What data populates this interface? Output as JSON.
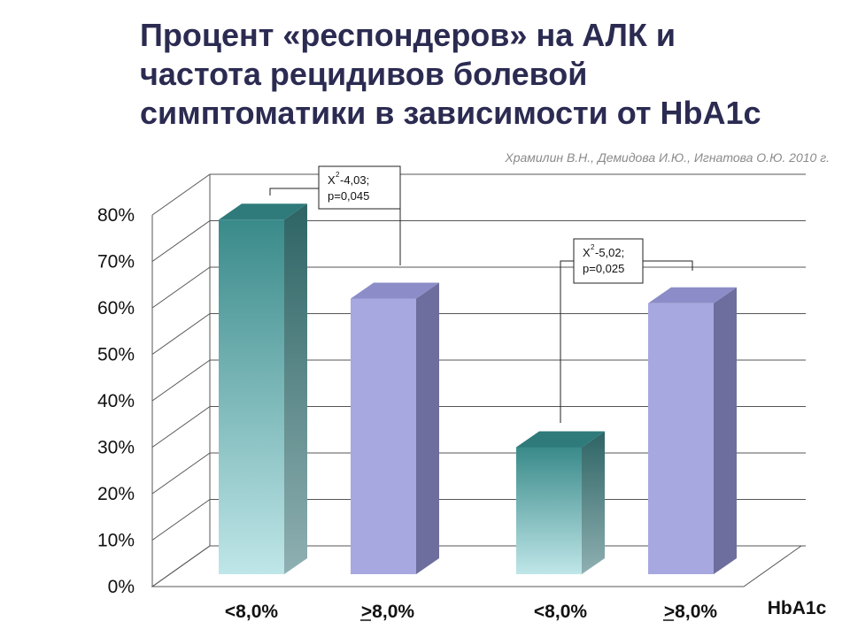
{
  "title_lines": [
    "Процент «респондеров» на АЛК и",
    "частота рецидивов болевой",
    "симптоматики в зависимости от HbA1c"
  ],
  "citation": "Храмилин В.Н., Демидова И.Ю., Игнатова О.Ю. 2010 г.",
  "colors": {
    "teal_top": "#3a8a8a",
    "teal_bottom": "#bfe6e8",
    "lavender": "#a8a8e0",
    "lavender_side": "#6e6e9e",
    "title": "#2b2b52",
    "grid": "#555555"
  },
  "chart_data": {
    "type": "bar",
    "categories": [
      "<8,0%",
      ">8,0%",
      "<8,0%",
      ">8,0%"
    ],
    "category_underline_prefix": [
      false,
      true,
      false,
      true
    ],
    "values": [
      79,
      62,
      30,
      61
    ],
    "bar_styles": [
      "teal",
      "lavender",
      "teal",
      "lavender"
    ],
    "x_axis_title": "HbA1c",
    "y_ticks": [
      "0%",
      "10%",
      "20%",
      "30%",
      "40%",
      "50%",
      "60%",
      "70%",
      "80%"
    ],
    "ylim": [
      0,
      80
    ],
    "grid": true,
    "annotations": [
      {
        "chi_label": "X",
        "sup": "2",
        "chi_value": "-4,03;",
        "p_value": "p=0,045",
        "between": [
          0,
          1
        ]
      },
      {
        "chi_label": "X",
        "sup": "2",
        "chi_value": "-5,02;",
        "p_value": "p=0,025",
        "between": [
          2,
          3
        ]
      }
    ]
  }
}
